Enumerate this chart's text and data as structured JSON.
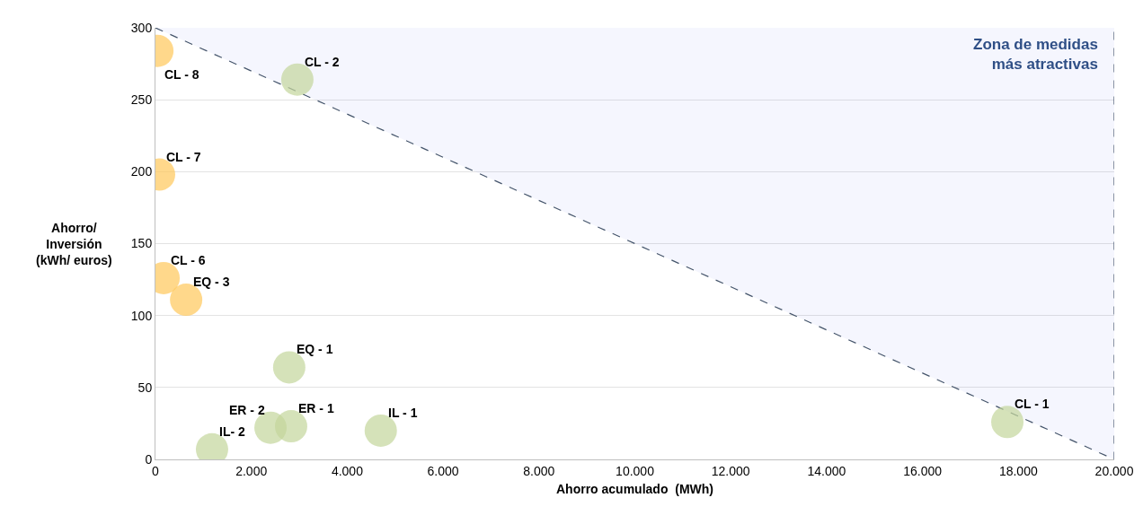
{
  "chart_data": {
    "type": "bubble",
    "xlabel": "Ahorro acumulado  (MWh)",
    "ylabel": "Ahorro/\nInversión\n(kWh/ euros)",
    "xlim": [
      0,
      20000
    ],
    "ylim": [
      0,
      300
    ],
    "xticks": [
      {
        "value": 0,
        "label": "0"
      },
      {
        "value": 2000,
        "label": "2.000"
      },
      {
        "value": 4000,
        "label": "4.000"
      },
      {
        "value": 6000,
        "label": "6.000"
      },
      {
        "value": 8000,
        "label": "8.000"
      },
      {
        "value": 10000,
        "label": "10.000"
      },
      {
        "value": 12000,
        "label": "12.000"
      },
      {
        "value": 14000,
        "label": "14.000"
      },
      {
        "value": 16000,
        "label": "16.000"
      },
      {
        "value": 18000,
        "label": "18.000"
      },
      {
        "value": 20000,
        "label": "20.000"
      }
    ],
    "yticks": [
      0,
      50,
      100,
      150,
      200,
      250,
      300
    ],
    "grid": "y",
    "legend": false,
    "marker": "circle",
    "series": [
      {
        "type": "area",
        "color": "#44546a",
        "line_style": "dashed",
        "marker": "none",
        "x": [
          0,
          20000,
          20000
        ],
        "values": [
          300,
          0,
          300
        ]
      },
      {
        "color": "#ffc85a",
        "x": [
          40,
          75,
          170,
          640
        ],
        "values": [
          284,
          198,
          126,
          111
        ],
        "sizes": [
          1,
          1,
          1,
          1
        ]
      },
      {
        "color": "#c3d69b",
        "x": [
          2960,
          2790,
          2400,
          2830,
          1180,
          4700,
          17770
        ],
        "values": [
          264,
          64,
          22,
          23,
          7,
          20,
          26
        ],
        "sizes": [
          1,
          1,
          1,
          1,
          1,
          1,
          1
        ]
      }
    ],
    "annotations": [
      {
        "text": "CL - 8",
        "x": 40,
        "y": 284
      },
      {
        "text": "CL - 7",
        "x": 75,
        "y": 198
      },
      {
        "text": "CL - 6",
        "x": 170,
        "y": 126
      },
      {
        "text": "EQ - 3",
        "x": 640,
        "y": 111
      },
      {
        "text": "CL - 2",
        "x": 2960,
        "y": 264
      },
      {
        "text": "EQ - 1",
        "x": 2790,
        "y": 64
      },
      {
        "text": "ER - 2",
        "x": 2400,
        "y": 22
      },
      {
        "text": "ER - 1",
        "x": 2830,
        "y": 23
      },
      {
        "text": "IL- 2",
        "x": 1180,
        "y": 7
      },
      {
        "text": "IL - 1",
        "x": 4700,
        "y": 20
      },
      {
        "text": "CL - 1",
        "x": 17770,
        "y": 26
      },
      "Zona de medidas\nmás atractivas"
    ]
  }
}
